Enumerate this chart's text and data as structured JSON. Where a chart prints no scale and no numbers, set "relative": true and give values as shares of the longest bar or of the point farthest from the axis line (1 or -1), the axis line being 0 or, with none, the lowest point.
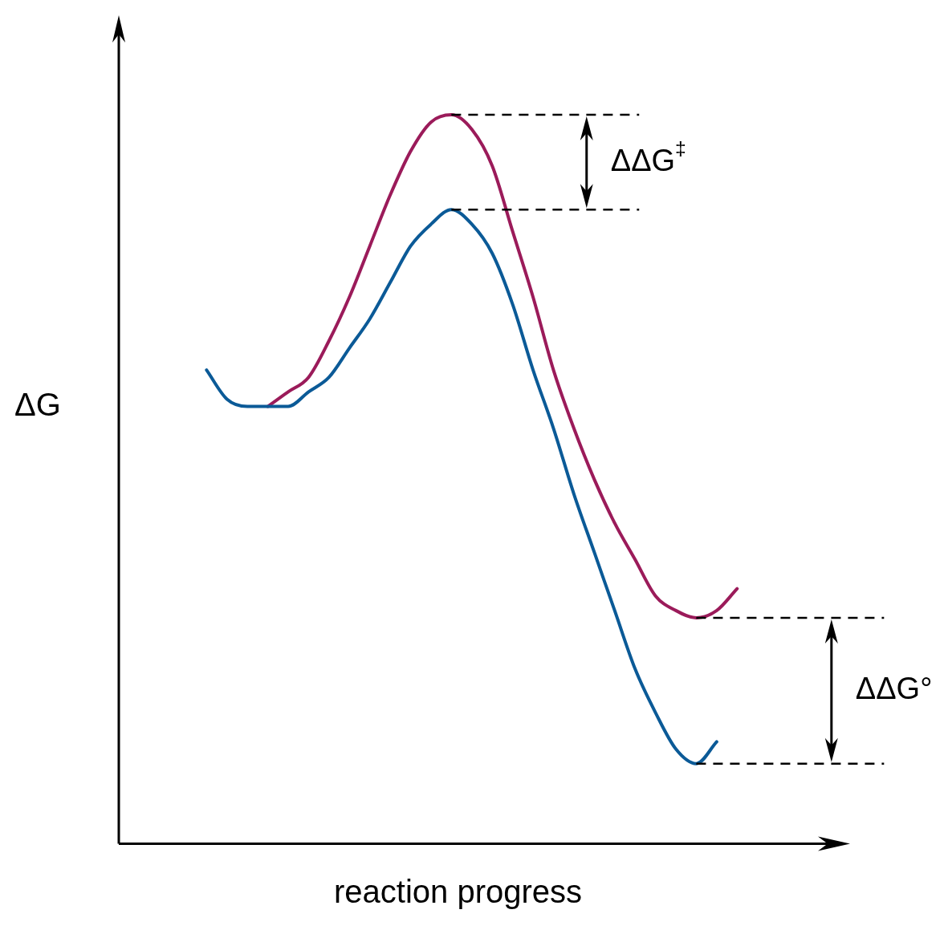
{
  "chart_data": {
    "type": "line",
    "relative": true,
    "xlabel": "reaction progress",
    "ylabel": "ΔG",
    "categories": [
      null,
      null,
      null,
      null,
      null,
      null,
      null,
      null,
      null,
      null,
      null,
      null,
      null,
      null,
      null,
      null,
      null,
      null,
      null,
      null,
      null,
      null,
      null,
      null,
      null,
      null,
      null
    ],
    "series": [
      {
        "color": "#0b5a97",
        "values": [
          0.65,
          0.61,
          0.6,
          0.6,
          0.6,
          0.62,
          0.64,
          0.68,
          0.72,
          0.77,
          0.82,
          0.85,
          0.87,
          0.85,
          0.81,
          0.74,
          0.65,
          0.57,
          0.48,
          0.4,
          0.32,
          0.24,
          0.18,
          0.13,
          0.11,
          0.14,
          null
        ]
      },
      {
        "color": "#9b1b5a",
        "values": [
          null,
          null,
          null,
          0.6,
          0.62,
          0.64,
          0.69,
          0.75,
          0.82,
          0.89,
          0.95,
          0.99,
          1.0,
          0.98,
          0.93,
          0.84,
          0.75,
          0.65,
          0.57,
          0.5,
          0.44,
          0.39,
          0.34,
          0.32,
          0.31,
          0.32,
          0.35
        ]
      }
    ],
    "ref_lines": [
      {
        "axis": "y",
        "value": 1.0,
        "line_style": "dashed",
        "color": "#000000"
      },
      {
        "axis": "y",
        "value": 0.87,
        "line_style": "dashed",
        "color": "#000000"
      },
      {
        "axis": "y",
        "value": 0.31,
        "line_style": "dashed",
        "color": "#000000"
      },
      {
        "axis": "y",
        "value": 0.11,
        "line_style": "dashed",
        "color": "#000000"
      }
    ],
    "annotations": [
      "ΔΔG$^{‡}$",
      "ΔΔG°"
    ],
    "grid": false,
    "legend": false,
    "marker": "none",
    "line_style": "solid"
  }
}
